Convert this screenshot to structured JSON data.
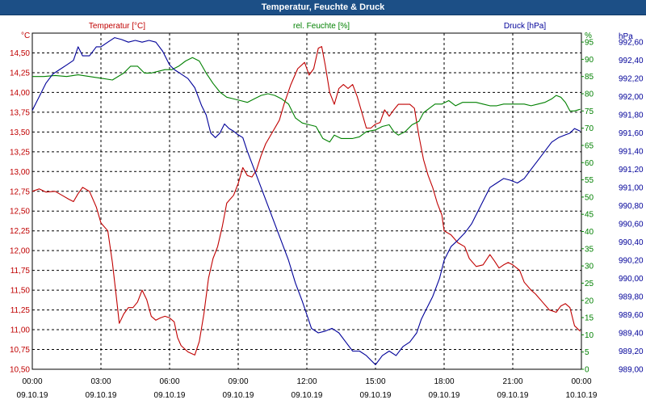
{
  "window": {
    "title": "Temperatur, Feuchte & Druck"
  },
  "colors": {
    "temperature": "#c00000",
    "humidity": "#008000",
    "pressure": "#000099",
    "titlebar": "#1c4f86"
  },
  "chart_data": {
    "type": "line",
    "title": "Temperatur, Feuchte & Druck",
    "grid": true,
    "x": {
      "range_hours": [
        0,
        24
      ],
      "tick_hours": [
        0,
        3,
        6,
        9,
        12,
        15,
        18,
        21,
        24
      ],
      "tick_time": [
        "00:00",
        "03:00",
        "06:00",
        "09:00",
        "12:00",
        "15:00",
        "18:00",
        "21:00",
        "00:00"
      ],
      "tick_date": [
        "09.10.19",
        "09.10.19",
        "09.10.19",
        "09.10.19",
        "09.10.19",
        "09.10.19",
        "09.10.19",
        "09.10.19",
        "10.10.19"
      ]
    },
    "axes": {
      "temperature": {
        "unit": "°C",
        "min": 10.5,
        "max": 14.75,
        "ticks": [
          "10,50",
          "10,75",
          "11,00",
          "11,25",
          "11,50",
          "11,75",
          "12,00",
          "12,25",
          "12,50",
          "12,75",
          "13,00",
          "13,25",
          "13,50",
          "13,75",
          "14,00",
          "14,25",
          "14,50"
        ]
      },
      "humidity": {
        "unit": "%",
        "min": 0,
        "max": 97.6,
        "ticks": [
          "0",
          "5",
          "10",
          "15",
          "20",
          "25",
          "30",
          "35",
          "40",
          "45",
          "50",
          "55",
          "60",
          "65",
          "70",
          "75",
          "80",
          "85",
          "90",
          "95"
        ]
      },
      "pressure": {
        "unit": "hPa",
        "min": 989.0,
        "max": 992.7,
        "ticks": [
          "989,00",
          "989,20",
          "989,40",
          "989,60",
          "989,80",
          "990,00",
          "990,20",
          "990,40",
          "990,60",
          "990,80",
          "991,00",
          "991,20",
          "991,40",
          "991,60",
          "991,80",
          "992,00",
          "992,20",
          "992,40",
          "992,60"
        ]
      }
    },
    "series": [
      {
        "name": "Temperatur [°C]",
        "axis": "temperature",
        "color": "#c00000",
        "points": [
          [
            0,
            12.75
          ],
          [
            0.3,
            12.78
          ],
          [
            0.6,
            12.74
          ],
          [
            1,
            12.75
          ],
          [
            1.3,
            12.7
          ],
          [
            1.6,
            12.65
          ],
          [
            1.8,
            12.62
          ],
          [
            2,
            12.72
          ],
          [
            2.2,
            12.8
          ],
          [
            2.5,
            12.75
          ],
          [
            2.8,
            12.55
          ],
          [
            3,
            12.35
          ],
          [
            3.3,
            12.25
          ],
          [
            3.5,
            11.85
          ],
          [
            3.7,
            11.35
          ],
          [
            3.8,
            11.08
          ],
          [
            4,
            11.2
          ],
          [
            4.2,
            11.28
          ],
          [
            4.4,
            11.28
          ],
          [
            4.6,
            11.35
          ],
          [
            4.8,
            11.5
          ],
          [
            5,
            11.38
          ],
          [
            5.2,
            11.17
          ],
          [
            5.4,
            11.12
          ],
          [
            5.6,
            11.15
          ],
          [
            5.8,
            11.17
          ],
          [
            6,
            11.15
          ],
          [
            6.2,
            11.1
          ],
          [
            6.35,
            10.9
          ],
          [
            6.5,
            10.8
          ],
          [
            6.8,
            10.72
          ],
          [
            7.1,
            10.68
          ],
          [
            7.3,
            10.85
          ],
          [
            7.5,
            11.2
          ],
          [
            7.7,
            11.65
          ],
          [
            7.9,
            11.9
          ],
          [
            8.1,
            12.05
          ],
          [
            8.3,
            12.3
          ],
          [
            8.5,
            12.6
          ],
          [
            8.8,
            12.7
          ],
          [
            9,
            12.85
          ],
          [
            9.2,
            13.05
          ],
          [
            9.4,
            12.95
          ],
          [
            9.6,
            12.93
          ],
          [
            9.8,
            13.02
          ],
          [
            10,
            13.2
          ],
          [
            10.2,
            13.35
          ],
          [
            10.5,
            13.5
          ],
          [
            10.8,
            13.65
          ],
          [
            11,
            13.85
          ],
          [
            11.3,
            14.1
          ],
          [
            11.6,
            14.3
          ],
          [
            11.9,
            14.38
          ],
          [
            12.1,
            14.22
          ],
          [
            12.3,
            14.3
          ],
          [
            12.5,
            14.56
          ],
          [
            12.65,
            14.58
          ],
          [
            12.8,
            14.35
          ],
          [
            13,
            14
          ],
          [
            13.2,
            13.85
          ],
          [
            13.4,
            14.05
          ],
          [
            13.6,
            14.1
          ],
          [
            13.8,
            14.05
          ],
          [
            14,
            14.1
          ],
          [
            14.2,
            13.95
          ],
          [
            14.4,
            13.75
          ],
          [
            14.6,
            13.55
          ],
          [
            14.8,
            13.55
          ],
          [
            15,
            13.6
          ],
          [
            15.2,
            13.62
          ],
          [
            15.4,
            13.78
          ],
          [
            15.6,
            13.7
          ],
          [
            15.8,
            13.78
          ],
          [
            16,
            13.85
          ],
          [
            16.2,
            13.85
          ],
          [
            16.5,
            13.85
          ],
          [
            16.7,
            13.8
          ],
          [
            16.9,
            13.45
          ],
          [
            17.1,
            13.15
          ],
          [
            17.3,
            12.95
          ],
          [
            17.5,
            12.8
          ],
          [
            17.7,
            12.6
          ],
          [
            17.9,
            12.45
          ],
          [
            18,
            12.25
          ],
          [
            18.3,
            12.2
          ],
          [
            18.6,
            12.1
          ],
          [
            18.9,
            12.05
          ],
          [
            19.1,
            11.9
          ],
          [
            19.4,
            11.8
          ],
          [
            19.7,
            11.82
          ],
          [
            20,
            11.95
          ],
          [
            20.2,
            11.87
          ],
          [
            20.4,
            11.78
          ],
          [
            20.6,
            11.82
          ],
          [
            20.8,
            11.85
          ],
          [
            21,
            11.82
          ],
          [
            21.3,
            11.75
          ],
          [
            21.5,
            11.6
          ],
          [
            21.8,
            11.5
          ],
          [
            22,
            11.45
          ],
          [
            22.3,
            11.35
          ],
          [
            22.6,
            11.25
          ],
          [
            22.9,
            11.22
          ],
          [
            23.1,
            11.3
          ],
          [
            23.3,
            11.33
          ],
          [
            23.5,
            11.28
          ],
          [
            23.7,
            11.05
          ],
          [
            23.95,
            10.98
          ]
        ]
      },
      {
        "name": "rel. Feuchte [%]",
        "axis": "humidity",
        "color": "#008000",
        "points": [
          [
            0,
            85
          ],
          [
            0.5,
            85
          ],
          [
            1,
            85.3
          ],
          [
            1.5,
            85
          ],
          [
            2,
            85.5
          ],
          [
            2.5,
            85
          ],
          [
            3,
            84.5
          ],
          [
            3.5,
            84
          ],
          [
            4,
            86
          ],
          [
            4.3,
            88
          ],
          [
            4.6,
            88
          ],
          [
            4.9,
            86
          ],
          [
            5.2,
            86
          ],
          [
            5.5,
            86.5
          ],
          [
            5.8,
            87
          ],
          [
            6.1,
            87
          ],
          [
            6.4,
            88
          ],
          [
            6.7,
            89.5
          ],
          [
            7,
            90.5
          ],
          [
            7.3,
            89.5
          ],
          [
            7.6,
            86
          ],
          [
            7.9,
            83
          ],
          [
            8.2,
            80.5
          ],
          [
            8.5,
            79
          ],
          [
            8.8,
            78.5
          ],
          [
            9.1,
            78
          ],
          [
            9.4,
            77.5
          ],
          [
            9.7,
            78.5
          ],
          [
            10,
            79.5
          ],
          [
            10.3,
            80
          ],
          [
            10.6,
            79.5
          ],
          [
            10.9,
            78.5
          ],
          [
            11.2,
            77
          ],
          [
            11.5,
            73
          ],
          [
            11.8,
            71.5
          ],
          [
            12.1,
            71
          ],
          [
            12.4,
            70.5
          ],
          [
            12.7,
            67
          ],
          [
            13,
            66
          ],
          [
            13.2,
            68
          ],
          [
            13.5,
            67
          ],
          [
            13.8,
            67
          ],
          [
            14,
            67
          ],
          [
            14.3,
            67.5
          ],
          [
            14.6,
            69
          ],
          [
            15,
            69.5
          ],
          [
            15.3,
            70.5
          ],
          [
            15.6,
            71
          ],
          [
            15.8,
            69
          ],
          [
            16,
            68
          ],
          [
            16.3,
            69
          ],
          [
            16.6,
            71
          ],
          [
            16.9,
            72
          ],
          [
            17.1,
            74.5
          ],
          [
            17.4,
            76
          ],
          [
            17.6,
            77
          ],
          [
            17.9,
            77
          ],
          [
            18.2,
            78
          ],
          [
            18.5,
            76.5
          ],
          [
            18.8,
            77.5
          ],
          [
            19.1,
            77.5
          ],
          [
            19.4,
            77.5
          ],
          [
            19.7,
            77
          ],
          [
            20,
            76.5
          ],
          [
            20.3,
            76.5
          ],
          [
            20.6,
            77
          ],
          [
            20.9,
            77
          ],
          [
            21.2,
            77
          ],
          [
            21.5,
            77
          ],
          [
            21.8,
            76.5
          ],
          [
            22.1,
            77
          ],
          [
            22.4,
            77.5
          ],
          [
            22.7,
            78.5
          ],
          [
            22.9,
            79.5
          ],
          [
            23.1,
            79
          ],
          [
            23.3,
            77.5
          ],
          [
            23.5,
            75
          ],
          [
            23.7,
            75
          ],
          [
            23.95,
            75.5
          ]
        ]
      },
      {
        "name": "Druck [hPa]",
        "axis": "pressure",
        "color": "#000099",
        "points": [
          [
            0,
            991.85
          ],
          [
            0.3,
            992.0
          ],
          [
            0.6,
            992.15
          ],
          [
            0.9,
            992.25
          ],
          [
            1.2,
            992.3
          ],
          [
            1.5,
            992.35
          ],
          [
            1.8,
            992.4
          ],
          [
            2,
            992.55
          ],
          [
            2.2,
            992.45
          ],
          [
            2.5,
            992.45
          ],
          [
            2.8,
            992.55
          ],
          [
            3,
            992.55
          ],
          [
            3.3,
            992.6
          ],
          [
            3.6,
            992.65
          ],
          [
            3.9,
            992.63
          ],
          [
            4.2,
            992.6
          ],
          [
            4.5,
            992.62
          ],
          [
            4.8,
            992.6
          ],
          [
            5.1,
            992.62
          ],
          [
            5.4,
            992.6
          ],
          [
            5.7,
            992.5
          ],
          [
            6,
            992.35
          ],
          [
            6.2,
            992.3
          ],
          [
            6.5,
            992.25
          ],
          [
            6.8,
            992.2
          ],
          [
            7.1,
            992.1
          ],
          [
            7.4,
            991.9
          ],
          [
            7.6,
            991.8
          ],
          [
            7.8,
            991.6
          ],
          [
            8,
            991.55
          ],
          [
            8.2,
            991.6
          ],
          [
            8.4,
            991.7
          ],
          [
            8.6,
            991.65
          ],
          [
            8.8,
            991.62
          ],
          [
            9,
            991.58
          ],
          [
            9.2,
            991.55
          ],
          [
            9.4,
            991.4
          ],
          [
            9.7,
            991.2
          ],
          [
            10,
            991.0
          ],
          [
            10.3,
            990.8
          ],
          [
            10.6,
            990.6
          ],
          [
            10.9,
            990.4
          ],
          [
            11.2,
            990.2
          ],
          [
            11.5,
            989.95
          ],
          [
            11.8,
            989.75
          ],
          [
            12,
            989.6
          ],
          [
            12.2,
            989.45
          ],
          [
            12.5,
            989.4
          ],
          [
            12.8,
            989.42
          ],
          [
            13.1,
            989.45
          ],
          [
            13.4,
            989.4
          ],
          [
            13.7,
            989.3
          ],
          [
            14,
            989.2
          ],
          [
            14.3,
            989.2
          ],
          [
            14.6,
            989.15
          ],
          [
            14.8,
            989.1
          ],
          [
            15.0,
            989.05
          ],
          [
            15.3,
            989.15
          ],
          [
            15.6,
            989.2
          ],
          [
            15.9,
            989.15
          ],
          [
            16.2,
            989.25
          ],
          [
            16.5,
            989.3
          ],
          [
            16.8,
            989.4
          ],
          [
            17.0,
            989.55
          ],
          [
            17.2,
            989.65
          ],
          [
            17.5,
            989.8
          ],
          [
            17.8,
            990.0
          ],
          [
            18,
            990.2
          ],
          [
            18.3,
            990.35
          ],
          [
            18.6,
            990.42
          ],
          [
            18.9,
            990.5
          ],
          [
            19.2,
            990.6
          ],
          [
            19.5,
            990.75
          ],
          [
            19.8,
            990.9
          ],
          [
            20,
            991.0
          ],
          [
            20.3,
            991.05
          ],
          [
            20.6,
            991.1
          ],
          [
            20.9,
            991.08
          ],
          [
            21.2,
            991.05
          ],
          [
            21.5,
            991.1
          ],
          [
            21.8,
            991.2
          ],
          [
            22.1,
            991.3
          ],
          [
            22.4,
            991.4
          ],
          [
            22.7,
            991.5
          ],
          [
            23,
            991.55
          ],
          [
            23.3,
            991.58
          ],
          [
            23.5,
            991.6
          ],
          [
            23.7,
            991.65
          ],
          [
            23.95,
            991.62
          ]
        ]
      }
    ]
  }
}
